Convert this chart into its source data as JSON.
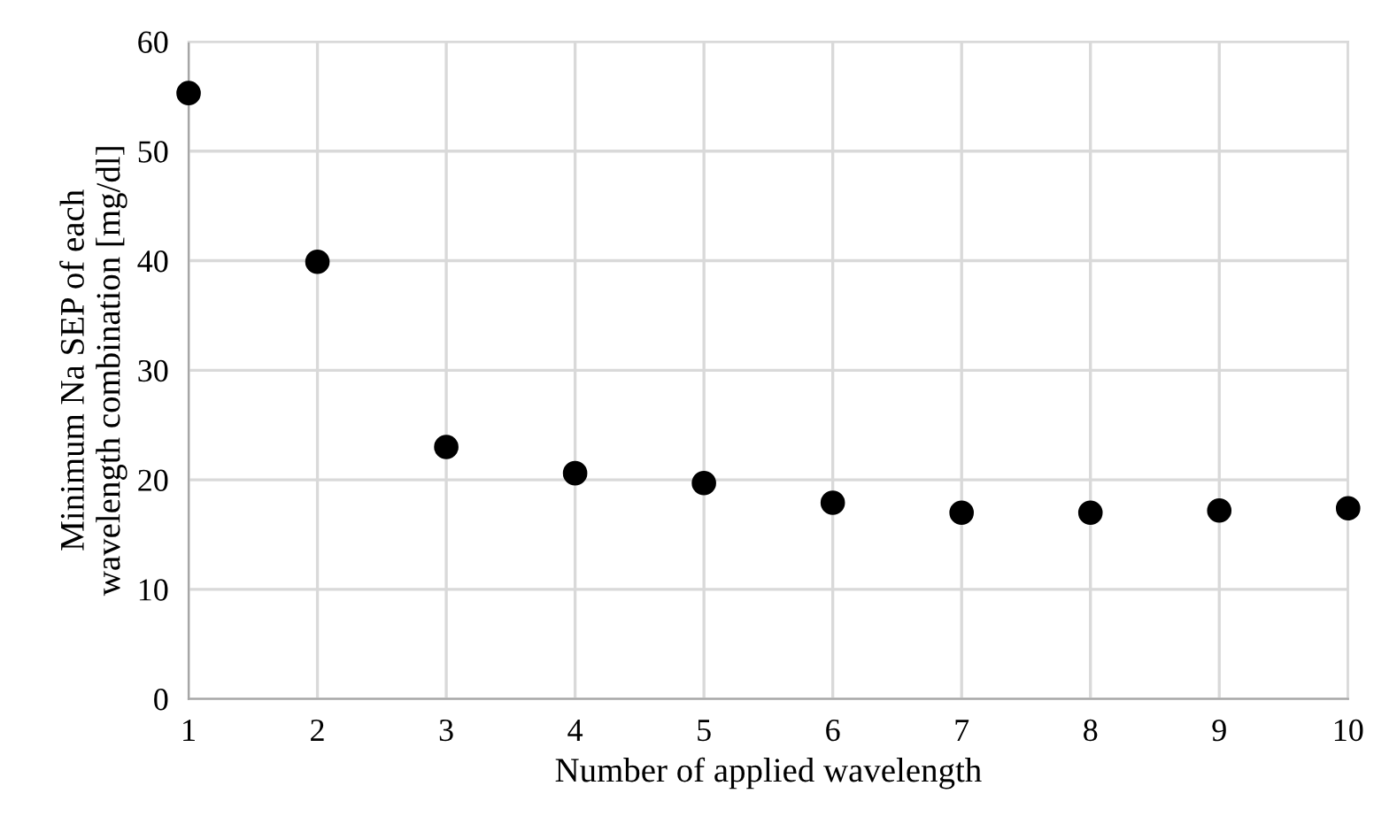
{
  "chart_data": {
    "type": "scatter",
    "xlabel": "Number of applied wavelength",
    "ylabel": "Minimum Na SEP of each\nwavelength combination [mg/dl]",
    "x": [
      1,
      2,
      3,
      4,
      5,
      6,
      7,
      8,
      9,
      10
    ],
    "series": [
      {
        "color": "#000000",
        "values": [
          55.3,
          39.9,
          23.0,
          20.6,
          19.7,
          17.9,
          17.0,
          17.0,
          17.2,
          17.4
        ]
      }
    ],
    "xlim": [
      1,
      10
    ],
    "xticks": [
      1,
      2,
      3,
      4,
      5,
      6,
      7,
      8,
      9,
      10
    ],
    "ylim": [
      0,
      60
    ],
    "yticks": [
      0,
      10,
      20,
      30,
      40,
      50,
      60
    ],
    "grid": true,
    "marker": "circle"
  }
}
